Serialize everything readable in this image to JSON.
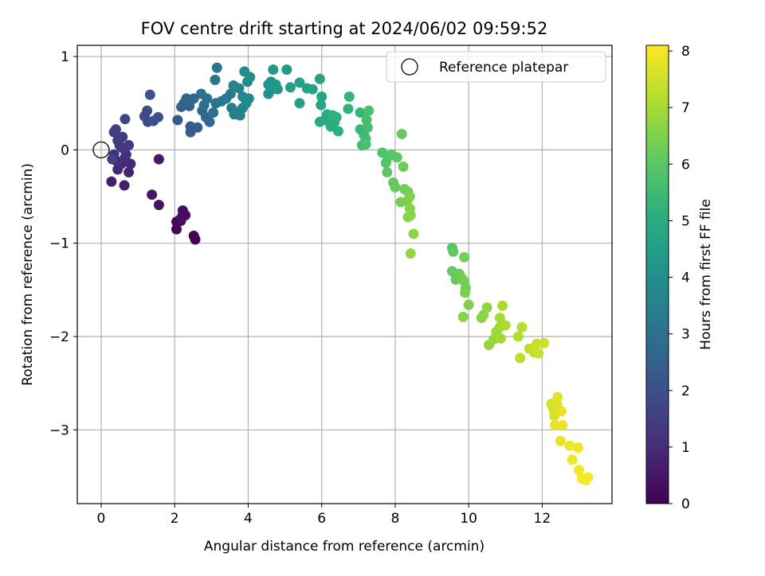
{
  "chart_data": {
    "type": "scatter",
    "title": "FOV centre drift starting at 2024/06/02 09:59:52",
    "xlabel": "Angular distance from reference (arcmin)",
    "ylabel": "Rotation from reference (arcmin)",
    "colorbar_label": "Hours from first FF file",
    "colormap": "viridis",
    "xlim": [
      -0.65,
      13.9
    ],
    "ylim": [
      -3.79,
      1.12
    ],
    "clim": [
      0,
      8.1
    ],
    "x_ticks": [
      0,
      2,
      4,
      6,
      8,
      10,
      12
    ],
    "y_ticks": [
      -3,
      -2,
      -1,
      0,
      1
    ],
    "colorbar_ticks": [
      0,
      1,
      2,
      3,
      4,
      5,
      6,
      7,
      8
    ],
    "grid": true,
    "legend": {
      "position": "top-right",
      "entries": [
        {
          "label": "Reference platepar",
          "marker": "open-circle"
        }
      ]
    },
    "reference_point": {
      "x": 0,
      "y": 0
    },
    "points": [
      [
        2.56,
        -0.96,
        0.05
      ],
      [
        2.52,
        -0.92,
        0.08
      ],
      [
        2.05,
        -0.85,
        0.12
      ],
      [
        2.05,
        -0.77,
        0.15
      ],
      [
        2.17,
        -0.76,
        0.18
      ],
      [
        2.22,
        -0.7,
        0.22
      ],
      [
        2.29,
        -0.7,
        0.25
      ],
      [
        2.22,
        -0.65,
        0.28
      ],
      [
        2.16,
        -0.74,
        0.3
      ],
      [
        1.57,
        -0.59,
        0.45
      ],
      [
        1.38,
        -0.48,
        0.5
      ],
      [
        1.57,
        -0.1,
        0.55
      ],
      [
        0.63,
        -0.38,
        0.65
      ],
      [
        0.28,
        -0.34,
        0.7
      ],
      [
        0.75,
        -0.24,
        0.8
      ],
      [
        0.45,
        -0.21,
        0.85
      ],
      [
        0.8,
        -0.15,
        0.9
      ],
      [
        0.55,
        -0.15,
        0.95
      ],
      [
        0.65,
        -0.08,
        1.0
      ],
      [
        0.42,
        -0.12,
        1.05
      ],
      [
        0.68,
        -0.05,
        1.1
      ],
      [
        0.35,
        -0.05,
        1.15
      ],
      [
        0.57,
        0.02,
        1.2
      ],
      [
        0.5,
        0.05,
        1.25
      ],
      [
        0.75,
        0.05,
        1.3
      ],
      [
        0.45,
        0.1,
        1.35
      ],
      [
        0.58,
        0.14,
        1.4
      ],
      [
        0.35,
        0.19,
        1.45
      ],
      [
        0.4,
        0.22,
        1.5
      ],
      [
        0.3,
        -0.1,
        1.55
      ],
      [
        0.65,
        0.33,
        1.7
      ],
      [
        1.18,
        0.36,
        1.8
      ],
      [
        1.27,
        0.3,
        1.85
      ],
      [
        1.25,
        0.42,
        1.9
      ],
      [
        1.42,
        0.31,
        1.95
      ],
      [
        1.55,
        0.35,
        2.0
      ],
      [
        1.33,
        0.59,
        2.05
      ],
      [
        2.08,
        0.32,
        2.2
      ],
      [
        2.43,
        0.19,
        2.3
      ],
      [
        2.43,
        0.25,
        2.35
      ],
      [
        2.62,
        0.24,
        2.4
      ],
      [
        2.18,
        0.46,
        2.45
      ],
      [
        2.4,
        0.47,
        2.5
      ],
      [
        2.25,
        0.5,
        2.55
      ],
      [
        2.32,
        0.55,
        2.6
      ],
      [
        2.52,
        0.55,
        2.65
      ],
      [
        2.85,
        0.35,
        2.7
      ],
      [
        2.95,
        0.3,
        2.75
      ],
      [
        2.75,
        0.42,
        2.8
      ],
      [
        2.8,
        0.48,
        2.85
      ],
      [
        2.72,
        0.6,
        2.9
      ],
      [
        2.88,
        0.55,
        2.95
      ],
      [
        3.05,
        0.4,
        3.0
      ],
      [
        3.12,
        0.5,
        3.05
      ],
      [
        3.1,
        0.75,
        3.1
      ],
      [
        3.15,
        0.88,
        3.15
      ],
      [
        3.27,
        0.52,
        3.2
      ],
      [
        3.4,
        0.55,
        3.25
      ],
      [
        3.52,
        0.6,
        3.3
      ],
      [
        3.55,
        0.45,
        3.35
      ],
      [
        3.62,
        0.38,
        3.4
      ],
      [
        3.7,
        0.4,
        3.45
      ],
      [
        3.78,
        0.37,
        3.5
      ],
      [
        3.85,
        0.45,
        3.55
      ],
      [
        3.6,
        0.69,
        3.6
      ],
      [
        3.75,
        0.66,
        3.65
      ],
      [
        3.85,
        0.57,
        3.7
      ],
      [
        3.95,
        0.5,
        3.75
      ],
      [
        4.02,
        0.55,
        3.8
      ],
      [
        3.98,
        0.73,
        3.85
      ],
      [
        4.05,
        0.78,
        3.9
      ],
      [
        3.9,
        0.84,
        3.95
      ],
      [
        4.55,
        0.6,
        4.0
      ],
      [
        4.65,
        0.65,
        4.05
      ],
      [
        4.55,
        0.7,
        4.1
      ],
      [
        4.62,
        0.73,
        4.15
      ],
      [
        4.7,
        0.68,
        4.2
      ],
      [
        4.75,
        0.7,
        4.25
      ],
      [
        4.8,
        0.65,
        4.3
      ],
      [
        4.68,
        0.86,
        4.35
      ],
      [
        5.05,
        0.86,
        4.4
      ],
      [
        5.15,
        0.67,
        4.45
      ],
      [
        5.4,
        0.72,
        4.5
      ],
      [
        5.4,
        0.5,
        4.55
      ],
      [
        5.6,
        0.66,
        4.6
      ],
      [
        5.75,
        0.65,
        4.65
      ],
      [
        5.95,
        0.76,
        4.7
      ],
      [
        6.0,
        0.57,
        4.75
      ],
      [
        5.98,
        0.48,
        4.8
      ],
      [
        5.95,
        0.3,
        4.85
      ],
      [
        6.08,
        0.32,
        4.9
      ],
      [
        6.15,
        0.38,
        4.95
      ],
      [
        6.25,
        0.25,
        5.0
      ],
      [
        6.35,
        0.3,
        5.05
      ],
      [
        6.45,
        0.2,
        5.1
      ],
      [
        6.3,
        0.37,
        5.15
      ],
      [
        6.4,
        0.35,
        5.2
      ],
      [
        6.72,
        0.44,
        5.25
      ],
      [
        6.75,
        0.57,
        5.3
      ],
      [
        7.05,
        0.4,
        5.35
      ],
      [
        7.05,
        0.22,
        5.4
      ],
      [
        7.15,
        0.16,
        5.45
      ],
      [
        7.1,
        0.05,
        5.5
      ],
      [
        7.2,
        0.12,
        5.55
      ],
      [
        7.25,
        0.24,
        5.6
      ],
      [
        7.22,
        0.32,
        5.65
      ],
      [
        7.28,
        0.42,
        5.7
      ],
      [
        7.2,
        0.06,
        5.75
      ],
      [
        7.65,
        -0.03,
        5.8
      ],
      [
        7.8,
        -0.08,
        5.85
      ],
      [
        7.75,
        -0.14,
        5.9
      ],
      [
        7.9,
        -0.05,
        5.95
      ],
      [
        8.05,
        -0.08,
        6.0
      ],
      [
        7.78,
        -0.24,
        6.05
      ],
      [
        7.95,
        -0.35,
        6.1
      ],
      [
        8.0,
        -0.4,
        6.15
      ],
      [
        8.18,
        0.17,
        6.2
      ],
      [
        8.22,
        -0.18,
        6.25
      ],
      [
        8.25,
        -0.42,
        6.3
      ],
      [
        8.35,
        -0.45,
        6.35
      ],
      [
        8.15,
        -0.56,
        6.4
      ],
      [
        8.32,
        -0.55,
        6.45
      ],
      [
        8.4,
        -0.5,
        6.5
      ],
      [
        8.4,
        -0.63,
        6.55
      ],
      [
        8.35,
        -0.72,
        6.6
      ],
      [
        8.42,
        -0.7,
        6.65
      ],
      [
        8.5,
        -0.9,
        6.7
      ],
      [
        8.42,
        -1.11,
        6.75
      ],
      [
        9.55,
        -1.05,
        6.0
      ],
      [
        9.58,
        -1.09,
        6.05
      ],
      [
        9.55,
        -1.3,
        6.1
      ],
      [
        9.65,
        -1.39,
        6.15
      ],
      [
        9.75,
        -1.33,
        6.2
      ],
      [
        9.88,
        -1.41,
        6.25
      ],
      [
        9.92,
        -1.48,
        6.3
      ],
      [
        9.82,
        -1.38,
        6.35
      ],
      [
        9.88,
        -1.15,
        6.4
      ],
      [
        9.9,
        -1.53,
        6.45
      ],
      [
        10.0,
        -1.66,
        6.5
      ],
      [
        9.85,
        -1.79,
        6.55
      ],
      [
        10.35,
        -1.8,
        6.6
      ],
      [
        10.4,
        -1.77,
        6.65
      ],
      [
        10.5,
        -1.69,
        6.7
      ],
      [
        10.55,
        -2.09,
        6.75
      ],
      [
        10.68,
        -2.03,
        6.8
      ],
      [
        10.75,
        -1.95,
        6.85
      ],
      [
        10.85,
        -1.9,
        6.9
      ],
      [
        10.87,
        -2.02,
        6.95
      ],
      [
        10.85,
        -1.8,
        7.0
      ],
      [
        10.92,
        -1.67,
        7.05
      ],
      [
        11.0,
        -1.88,
        7.1
      ],
      [
        11.35,
        -2.0,
        7.15
      ],
      [
        11.45,
        -1.9,
        7.2
      ],
      [
        11.4,
        -2.23,
        7.25
      ],
      [
        11.65,
        -2.13,
        7.3
      ],
      [
        11.78,
        -2.17,
        7.35
      ],
      [
        11.85,
        -2.08,
        7.4
      ],
      [
        11.9,
        -2.18,
        7.45
      ],
      [
        12.05,
        -2.07,
        7.5
      ],
      [
        12.25,
        -2.72,
        7.55
      ],
      [
        12.3,
        -2.77,
        7.6
      ],
      [
        12.33,
        -2.85,
        7.65
      ],
      [
        12.4,
        -2.73,
        7.7
      ],
      [
        12.42,
        -2.65,
        7.75
      ],
      [
        12.35,
        -2.95,
        7.8
      ],
      [
        12.52,
        -2.8,
        7.8
      ],
      [
        12.55,
        -2.95,
        7.85
      ],
      [
        12.5,
        -3.12,
        7.85
      ],
      [
        12.75,
        -3.17,
        7.9
      ],
      [
        12.82,
        -3.32,
        7.9
      ],
      [
        12.98,
        -3.19,
        7.95
      ],
      [
        13.0,
        -3.43,
        7.95
      ],
      [
        13.08,
        -3.52,
        8.0
      ],
      [
        13.18,
        -3.54,
        8.02
      ],
      [
        13.25,
        -3.51,
        8.05
      ]
    ]
  }
}
